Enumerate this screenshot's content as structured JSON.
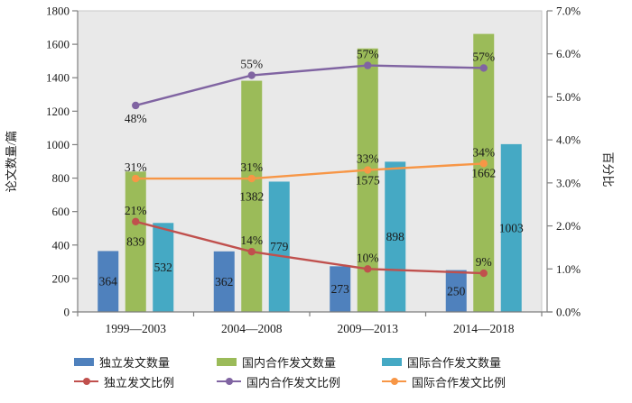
{
  "chart_data": {
    "type": "combo-bar-line",
    "title": "",
    "categories": [
      "1999—2003",
      "2004—2008",
      "2009—2013",
      "2014—2018"
    ],
    "bar_series": [
      {
        "name": "独立发文数量",
        "color": "#4f81bd",
        "values": [
          364,
          362,
          273,
          250
        ]
      },
      {
        "name": "国内合作发文数量",
        "color": "#9bbb59",
        "values": [
          839,
          1382,
          1575,
          1662
        ]
      },
      {
        "name": "国际合作发文数量",
        "color": "#45a9c4",
        "values": [
          532,
          779,
          898,
          1003
        ]
      }
    ],
    "line_series": [
      {
        "name": "独立发文比例",
        "color": "#c0504d",
        "axis": "right",
        "values_pct": [
          2.1,
          1.4,
          1.0,
          0.9
        ],
        "point_labels": [
          "21%",
          "14%",
          "10%",
          "9%"
        ],
        "label_placement": [
          "above",
          "above",
          "above",
          "above"
        ]
      },
      {
        "name": "国内合作发文比例",
        "color": "#8064a2",
        "axis": "right",
        "values_pct": [
          4.8,
          5.5,
          5.73,
          5.67
        ],
        "point_labels": [
          "48%",
          "55%",
          "57%",
          "57%"
        ],
        "label_placement": [
          "below",
          "above",
          "above",
          "above"
        ]
      },
      {
        "name": "国际合作发文比例",
        "color": "#f79646",
        "axis": "right",
        "values_pct": [
          3.1,
          3.1,
          3.3,
          3.45
        ],
        "point_labels": [
          "31%",
          "31%",
          "33%",
          "34%"
        ],
        "label_placement": [
          "above",
          "above",
          "above",
          "above"
        ]
      }
    ],
    "left_axis": {
      "title": "论文数量/篇",
      "min": 0,
      "max": 1800,
      "step": 200
    },
    "right_axis": {
      "title": "百分比",
      "min": 0,
      "max": 7,
      "step": 1,
      "decimals": 1,
      "suffix": "%"
    },
    "legend_position": "bottom",
    "grid": false,
    "plot_bg": "#e9e9e9",
    "plot_border": "#c9c9c9",
    "axis_color": "#7f7f7f",
    "text_color": "#1a1a1a"
  }
}
